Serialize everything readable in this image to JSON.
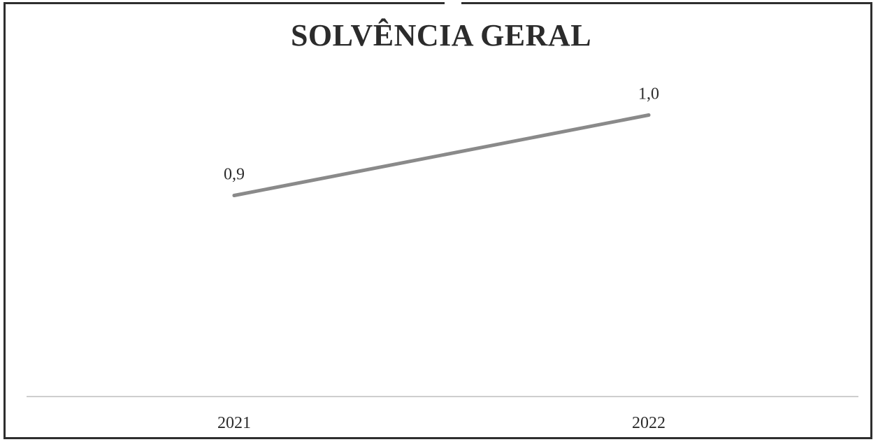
{
  "chart_data": {
    "type": "line",
    "title": "SOLVÊNCIA GERAL",
    "categories": [
      "2021",
      "2022"
    ],
    "series": [
      {
        "values": [
          0.9,
          1.0
        ],
        "data_labels": [
          "0,9",
          "1,0"
        ],
        "color": "#8a8a8a"
      }
    ],
    "ylim": [
      0.65,
      1.03
    ],
    "grid": false,
    "legend": "none",
    "axis_line_color": "#bdbdbd"
  }
}
